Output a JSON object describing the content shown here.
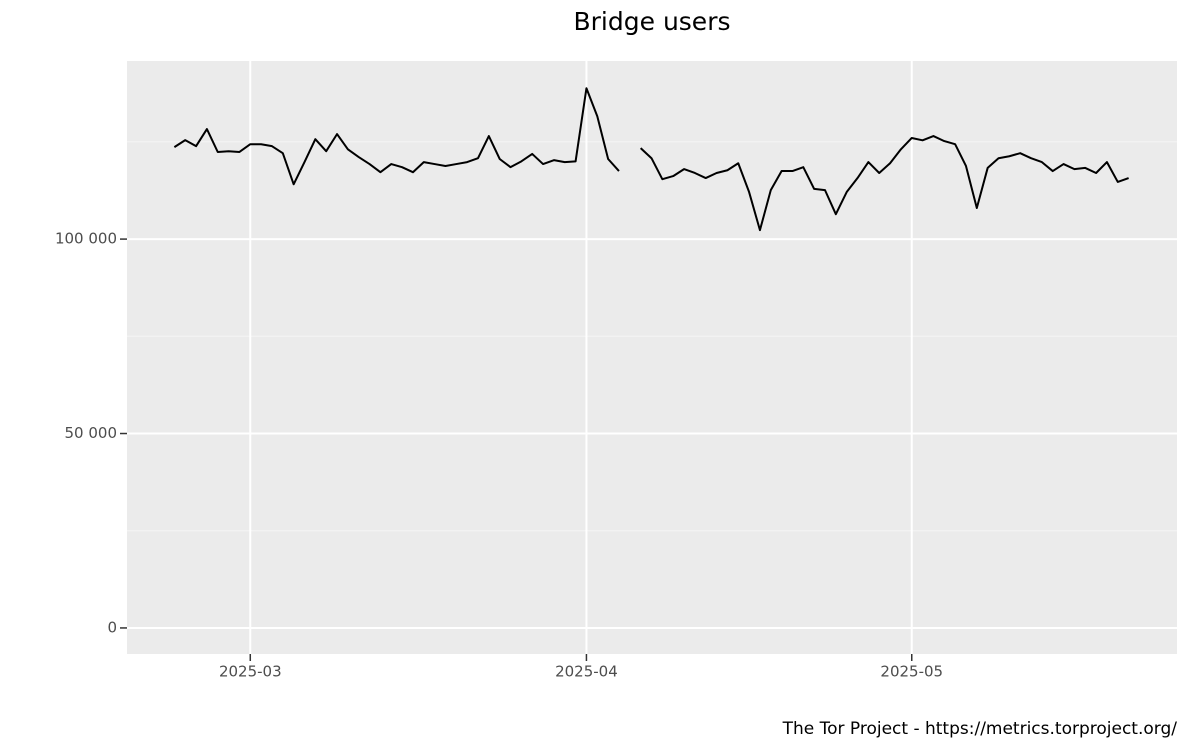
{
  "chart_data": {
    "type": "line",
    "title": "Bridge users",
    "caption": "The Tor Project - https://metrics.torproject.org/",
    "color": "#000000",
    "grid": true,
    "x": [
      "2025-02-22",
      "2025-02-23",
      "2025-02-24",
      "2025-02-25",
      "2025-02-26",
      "2025-02-27",
      "2025-02-28",
      "2025-03-01",
      "2025-03-02",
      "2025-03-03",
      "2025-03-04",
      "2025-03-05",
      "2025-03-06",
      "2025-03-07",
      "2025-03-08",
      "2025-03-09",
      "2025-03-10",
      "2025-03-11",
      "2025-03-12",
      "2025-03-13",
      "2025-03-14",
      "2025-03-15",
      "2025-03-16",
      "2025-03-17",
      "2025-03-18",
      "2025-03-19",
      "2025-03-20",
      "2025-03-21",
      "2025-03-22",
      "2025-03-23",
      "2025-03-24",
      "2025-03-25",
      "2025-03-26",
      "2025-03-27",
      "2025-03-28",
      "2025-03-29",
      "2025-03-30",
      "2025-03-31",
      "2025-04-01",
      "2025-04-02",
      "2025-04-03",
      "2025-04-04",
      "2025-04-05",
      "2025-04-06",
      "2025-04-07",
      "2025-04-08",
      "2025-04-09",
      "2025-04-10",
      "2025-04-11",
      "2025-04-12",
      "2025-04-13",
      "2025-04-14",
      "2025-04-15",
      "2025-04-16",
      "2025-04-17",
      "2025-04-18",
      "2025-04-19",
      "2025-04-20",
      "2025-04-21",
      "2025-04-22",
      "2025-04-23",
      "2025-04-24",
      "2025-04-25",
      "2025-04-26",
      "2025-04-27",
      "2025-04-28",
      "2025-04-29",
      "2025-04-30",
      "2025-05-01",
      "2025-05-02",
      "2025-05-03",
      "2025-05-04",
      "2025-05-05",
      "2025-05-06",
      "2025-05-07",
      "2025-05-08",
      "2025-05-09",
      "2025-05-10",
      "2025-05-11",
      "2025-05-12",
      "2025-05-13",
      "2025-05-14",
      "2025-05-15",
      "2025-05-16",
      "2025-05-17",
      "2025-05-18",
      "2025-05-19",
      "2025-05-20",
      "2025-05-21"
    ],
    "values": [
      123650,
      125450,
      123900,
      128300,
      122400,
      122600,
      122400,
      124400,
      124400,
      123900,
      122100,
      114100,
      119800,
      125700,
      122600,
      127000,
      123100,
      121100,
      119300,
      117200,
      119300,
      118500,
      117200,
      119800,
      119300,
      118800,
      119300,
      119800,
      120800,
      126500,
      120600,
      118500,
      120000,
      121900,
      119300,
      120300,
      119800,
      120000,
      138800,
      131600,
      120600,
      117500,
      null,
      123400,
      120800,
      115400,
      116200,
      118000,
      117000,
      115700,
      117000,
      117700,
      119500,
      112100,
      102300,
      112600,
      117500,
      117500,
      118500,
      112900,
      112600,
      106400,
      112100,
      115700,
      119800,
      117000,
      119500,
      123100,
      126000,
      125400,
      126500,
      125200,
      124400,
      118800,
      108000,
      118300,
      120800,
      121300,
      122100,
      120800,
      119800,
      117500,
      119300,
      118000,
      118300,
      117000,
      119800,
      114700,
      115700
    ],
    "xlim": [
      "2025-02-18",
      "2025-05-25"
    ],
    "xticks": [
      {
        "value": "2025-03-01",
        "label": "2025-03"
      },
      {
        "value": "2025-04-01",
        "label": "2025-04"
      },
      {
        "value": "2025-05-01",
        "label": "2025-05"
      }
    ],
    "ylim": [
      -6700,
      145800
    ],
    "yticks": [
      0,
      {
        "value": 50000,
        "label": "50 000"
      },
      {
        "value": 100000,
        "label": "100 000"
      }
    ]
  }
}
